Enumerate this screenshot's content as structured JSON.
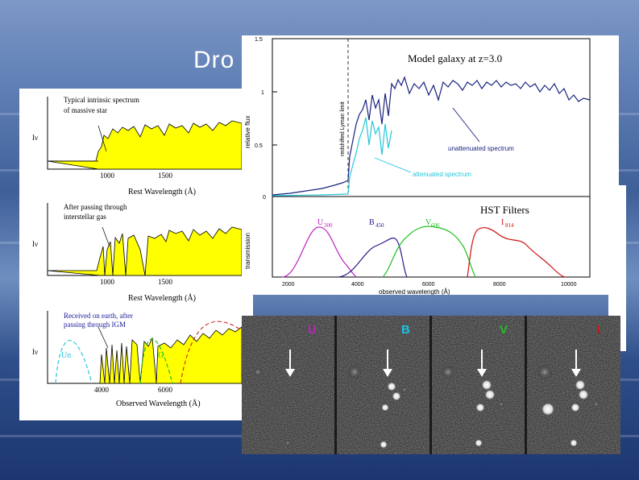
{
  "slide": {
    "title": "Dro"
  },
  "left_panel": {
    "top": {
      "annotation_line1": "Typical intrinsic spectrum",
      "annotation_line2": "of massive star",
      "ylabel": "Iν",
      "xlabel": "Rest Wavelength (Å)",
      "ticks": [
        "1000",
        "1500"
      ]
    },
    "middle": {
      "annotation_line1": "After passing through",
      "annotation_line2": "interstellar gas",
      "ylabel": "Iν",
      "xlabel": "Rest Wavelength (Å)",
      "ticks": [
        "1000",
        "1500"
      ]
    },
    "bottom": {
      "annotation_line1": "Received on earth, after",
      "annotation_line2": "passing through IGM",
      "ylabel": "Iν",
      "xlabel": "Observed Wavelength (Å)",
      "ticks": [
        "4000",
        "6000"
      ],
      "filter_label_1": "Un",
      "filter_label_2": "G"
    }
  },
  "top_panel": {
    "spectrum": {
      "title": "Model galaxy at z=3.0",
      "ylabel": "relative flux",
      "yticks": [
        "1.5",
        "1",
        "0.5",
        "0"
      ],
      "vline_label": "redshifted Lyman limit",
      "unattenuated_label": "unattenuated spectrum",
      "attenuated_label": "attenuated spectrum",
      "colors": {
        "unattenuated": "#1a237e",
        "attenuated": "#26c6da"
      }
    },
    "filters": {
      "title": "HST Filters",
      "ylabel": "transmission",
      "xlabel": "observed wavelength (Å)",
      "xticks": [
        "2000",
        "4000",
        "6000",
        "8000",
        "10000"
      ],
      "labels": [
        {
          "name": "U",
          "sub": "300",
          "color": "#c020c0"
        },
        {
          "name": "B",
          "sub": "450",
          "color": "#2a1a8a"
        },
        {
          "name": "V",
          "sub": "606",
          "color": "#20c020"
        },
        {
          "name": "I",
          "sub": "814",
          "color": "#d01010"
        }
      ]
    }
  },
  "image_strip": {
    "bands": [
      {
        "label": "U",
        "color": "#c020c0"
      },
      {
        "label": "B",
        "color": "#20c0e0"
      },
      {
        "label": "V",
        "color": "#20c020"
      },
      {
        "label": "I",
        "color": "#e01010"
      }
    ]
  }
}
